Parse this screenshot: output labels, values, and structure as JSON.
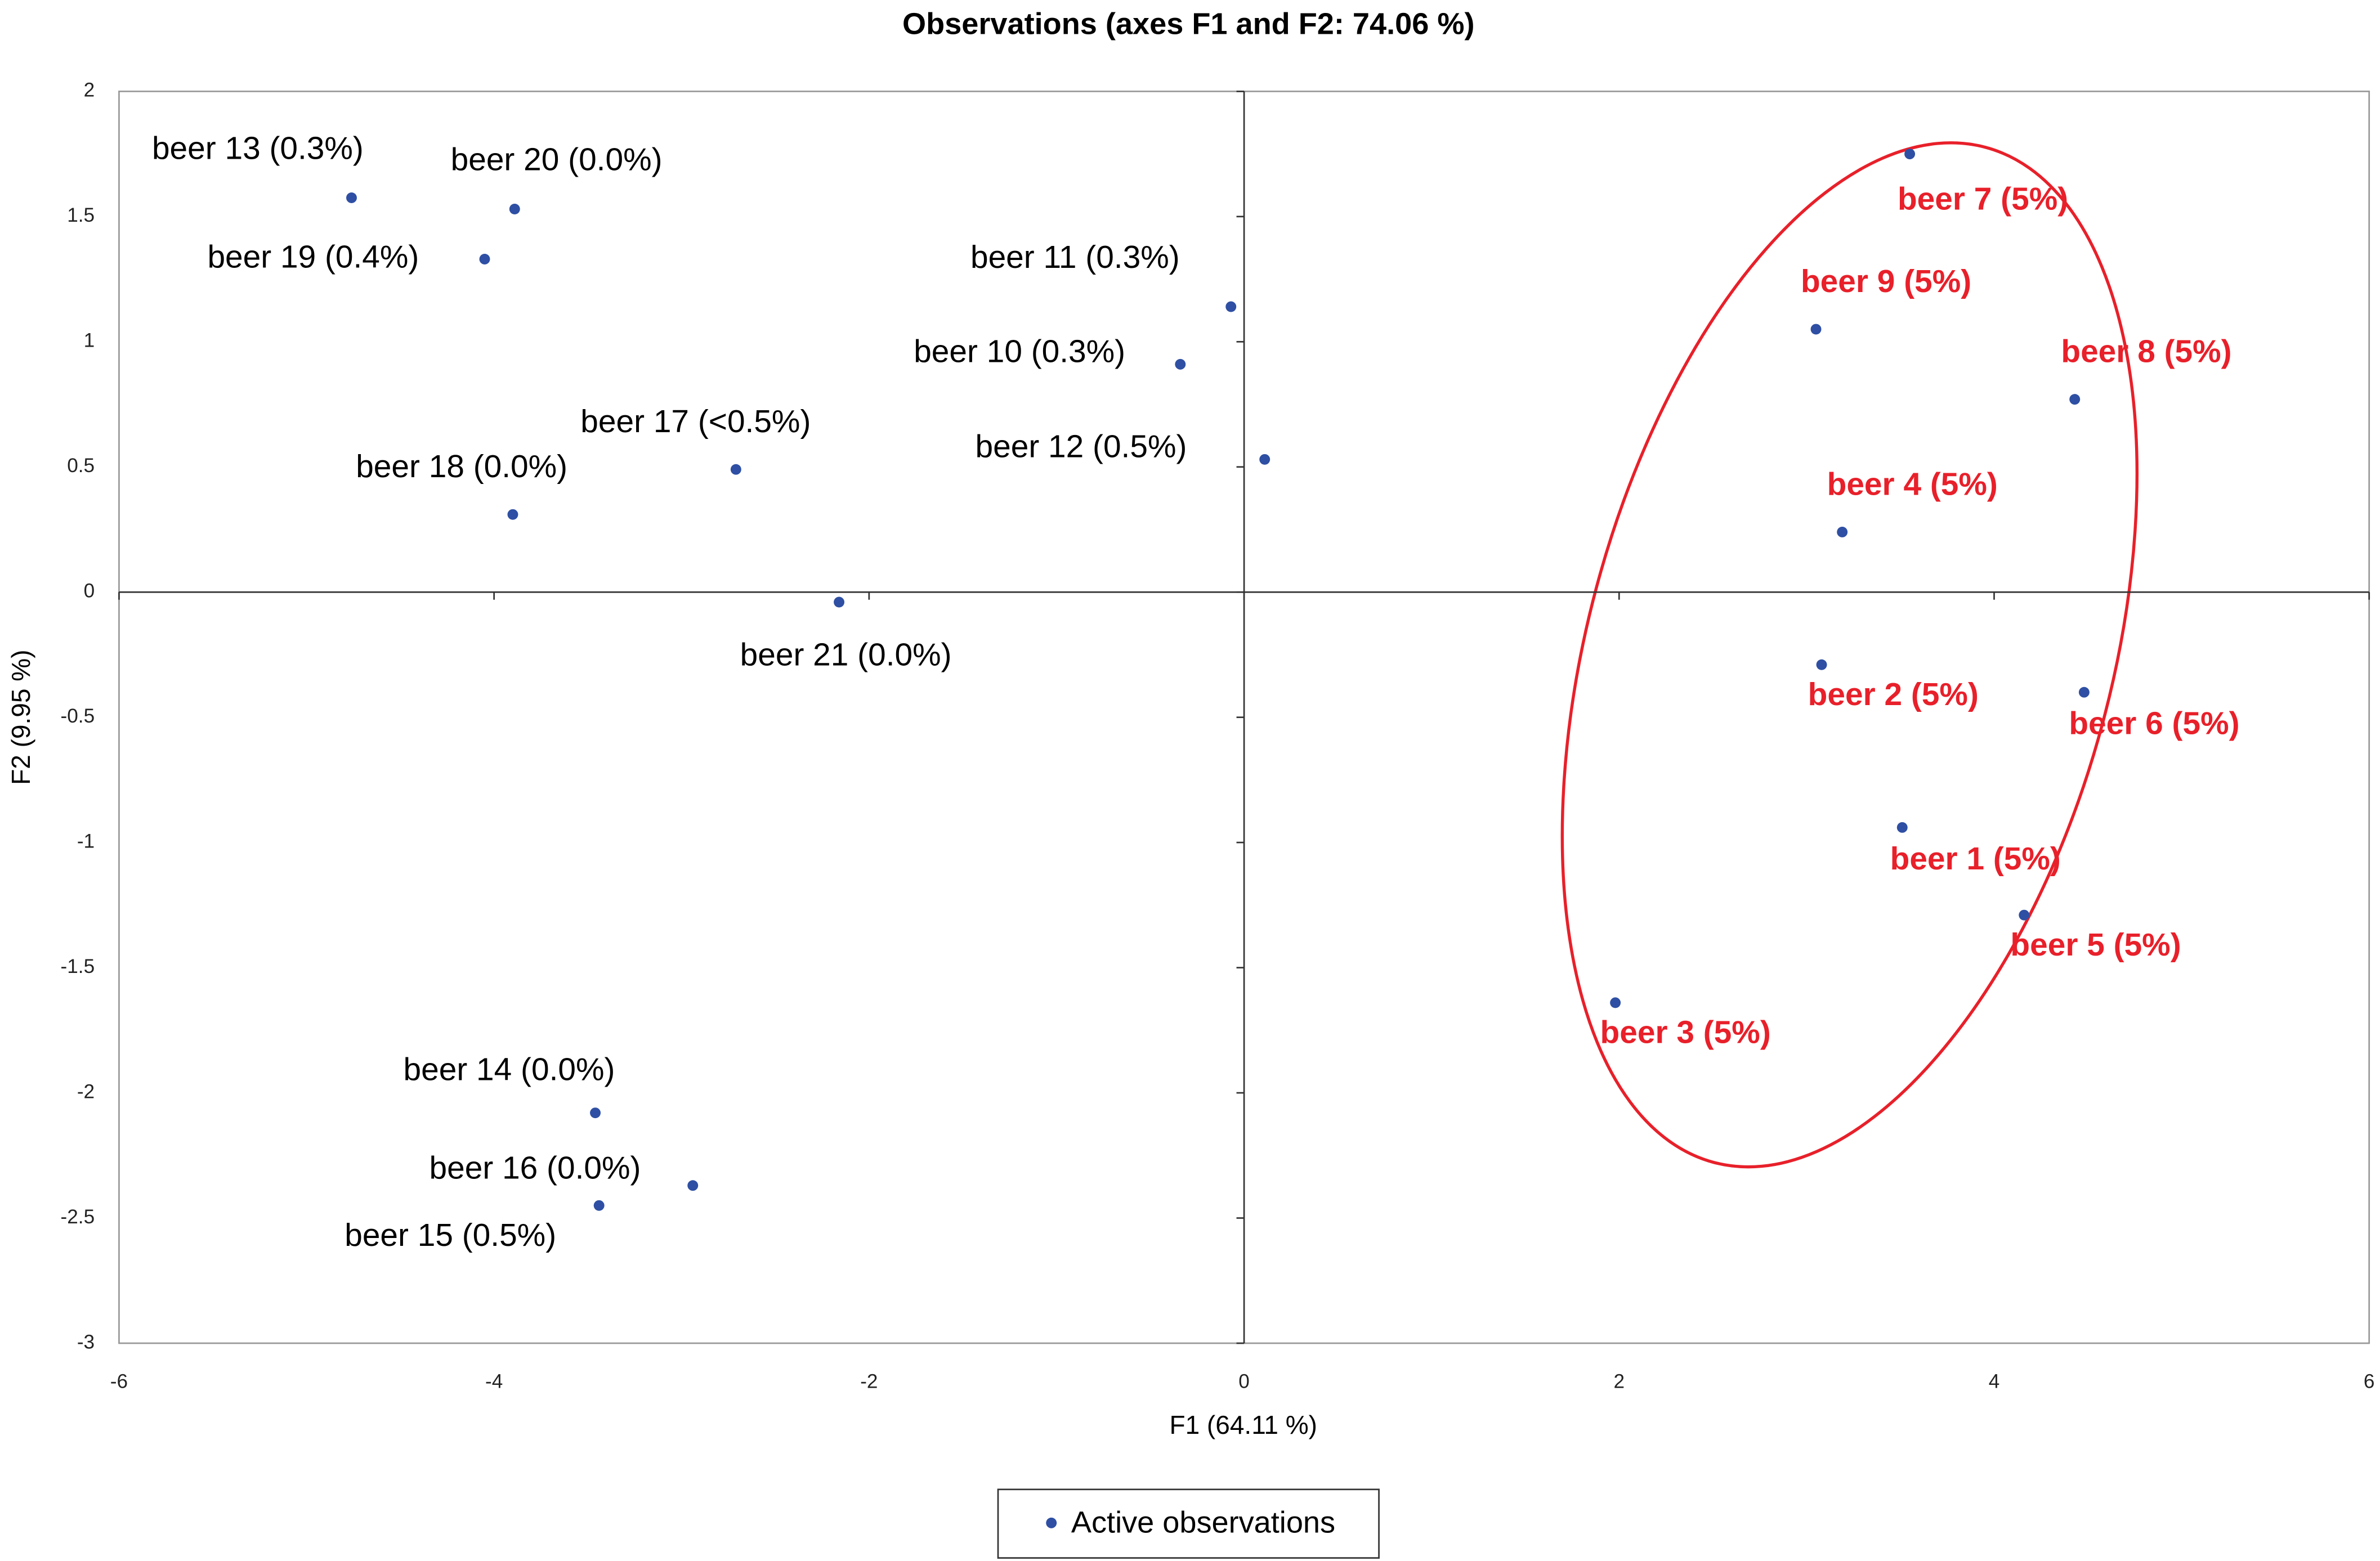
{
  "chart_data": {
    "type": "scatter",
    "title": "Observations (axes F1 and F2: 74.06 %)",
    "x_label": "F1 (64.11 %)",
    "y_label": "F2 (9.95 %)",
    "legend": "Active observations",
    "color": "#2e4fa3",
    "point_labels": [
      "beer 13 (0.3%)",
      "beer 20 (0.0%)",
      "beer 19 (0.4%)",
      "beer 11 (0.3%)",
      "beer 10 (0.3%)",
      "beer 17 (<0.5%)",
      "beer 18 (0.0%)",
      "beer 12 (0.5%)",
      "beer 21 (0.0%)",
      "beer 14 (0.0%)",
      "beer 16 (0.0%)",
      "beer 15 (0.5%)",
      "beer 7 (5%)",
      "beer 9 (5%)",
      "beer 8 (5%)",
      "beer 4 (5%)",
      "beer 2 (5%)",
      "beer 6 (5%)",
      "beer 1 (5%)",
      "beer 5 (5%)",
      "beer 3 (5%)"
    ],
    "label_colors": [
      "#000000",
      "#000000",
      "#000000",
      "#000000",
      "#000000",
      "#000000",
      "#000000",
      "#000000",
      "#000000",
      "#000000",
      "#000000",
      "#000000",
      "#e8202a",
      "#e8202a",
      "#e8202a",
      "#e8202a",
      "#e8202a",
      "#e8202a",
      "#e8202a",
      "#e8202a",
      "#e8202a"
    ],
    "x": [
      -4.76,
      -3.89,
      -4.05,
      -0.07,
      -0.34,
      -2.71,
      -3.9,
      0.11,
      -2.16,
      -3.46,
      -2.94,
      -3.44,
      3.55,
      3.05,
      4.43,
      3.19,
      3.08,
      4.48,
      3.51,
      4.16,
      1.98
    ],
    "y": [
      1.575,
      1.53,
      1.33,
      1.14,
      0.91,
      0.49,
      0.31,
      0.53,
      -0.04,
      -2.08,
      -2.37,
      -2.45,
      1.75,
      1.05,
      0.77,
      0.24,
      -0.29,
      -0.4,
      -0.94,
      -1.29,
      -1.64
    ],
    "xlim": [
      -6,
      6
    ],
    "xticks": [
      -6,
      -4,
      -2,
      0,
      2,
      4,
      6
    ],
    "ylim": [
      -3,
      2
    ],
    "yticks": [
      -3,
      -2.5,
      -2,
      -1.5,
      -1,
      -0.5,
      0,
      0.5,
      1,
      1.5,
      2
    ]
  }
}
